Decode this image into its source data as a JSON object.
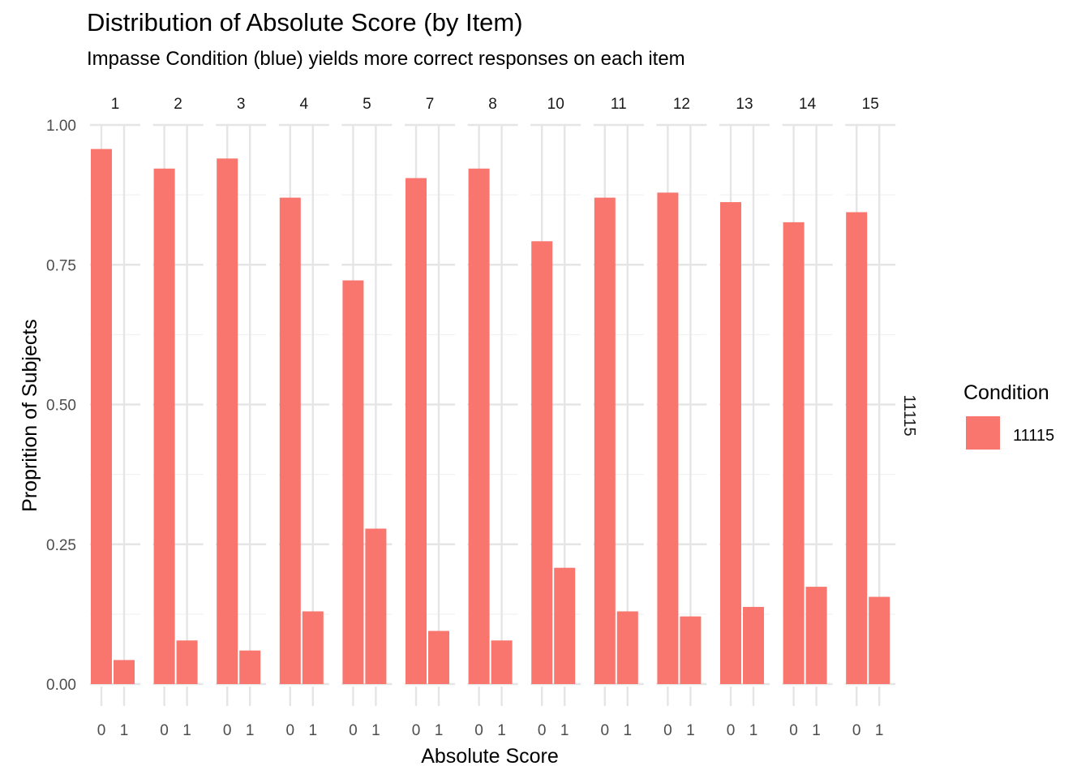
{
  "chart_data": {
    "type": "bar",
    "title": "Distribution of Absolute Score (by Item)",
    "subtitle": "Impasse Condition (blue) yields more correct responses on each item",
    "xlabel": "Absolute Score",
    "ylabel": "Proprition of Subjects",
    "ylim": [
      0,
      1
    ],
    "y_ticks": [
      "0.00",
      "0.25",
      "0.50",
      "0.75",
      "1.00"
    ],
    "categories": [
      "0",
      "1"
    ],
    "facets": [
      "1",
      "2",
      "3",
      "4",
      "5",
      "7",
      "8",
      "10",
      "11",
      "12",
      "13",
      "14",
      "15"
    ],
    "row_strip": "11115",
    "series": [
      {
        "name": "11115",
        "color": "#F8766D",
        "values_by_facet": [
          [
            0.957,
            0.043
          ],
          [
            0.922,
            0.078
          ],
          [
            0.94,
            0.06
          ],
          [
            0.87,
            0.13
          ],
          [
            0.722,
            0.278
          ],
          [
            0.905,
            0.095
          ],
          [
            0.922,
            0.078
          ],
          [
            0.792,
            0.208
          ],
          [
            0.87,
            0.13
          ],
          [
            0.879,
            0.121
          ],
          [
            0.862,
            0.138
          ],
          [
            0.826,
            0.174
          ],
          [
            0.844,
            0.156
          ]
        ]
      }
    ],
    "grid": true,
    "legend": {
      "title": "Condition",
      "position": "right",
      "entries": [
        "11115"
      ]
    }
  }
}
